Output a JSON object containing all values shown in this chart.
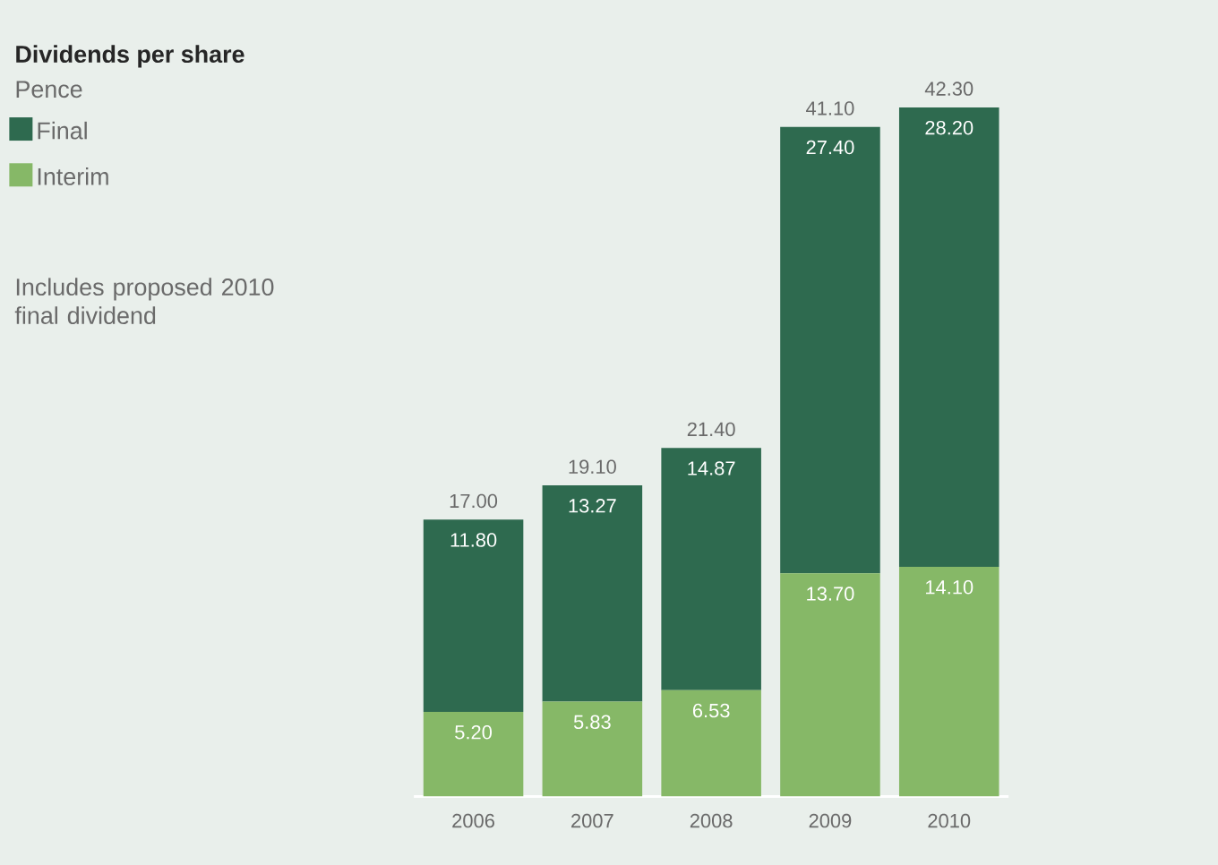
{
  "chart_data": {
    "type": "bar",
    "stacked": true,
    "title": "Dividends per share",
    "subtitle": "Pence",
    "annotations": [
      "Includes proposed 2010 final dividend"
    ],
    "categories": [
      "2006",
      "2007",
      "2008",
      "2009",
      "2010"
    ],
    "series": [
      {
        "name": "Interim",
        "color": "#86b867",
        "values": [
          5.2,
          5.83,
          6.53,
          13.7,
          14.1
        ],
        "value_labels": [
          "5.20",
          "5.83",
          "6.53",
          "13.70",
          "14.10"
        ]
      },
      {
        "name": "Final",
        "color": "#2e6a4f",
        "values": [
          11.8,
          13.27,
          14.87,
          27.4,
          28.2
        ],
        "value_labels": [
          "11.80",
          "13.27",
          "14.87",
          "27.40",
          "28.20"
        ]
      }
    ],
    "totals": [
      "17.00",
      "19.10",
      "21.40",
      "41.10",
      "42.30"
    ],
    "legend": "left"
  }
}
